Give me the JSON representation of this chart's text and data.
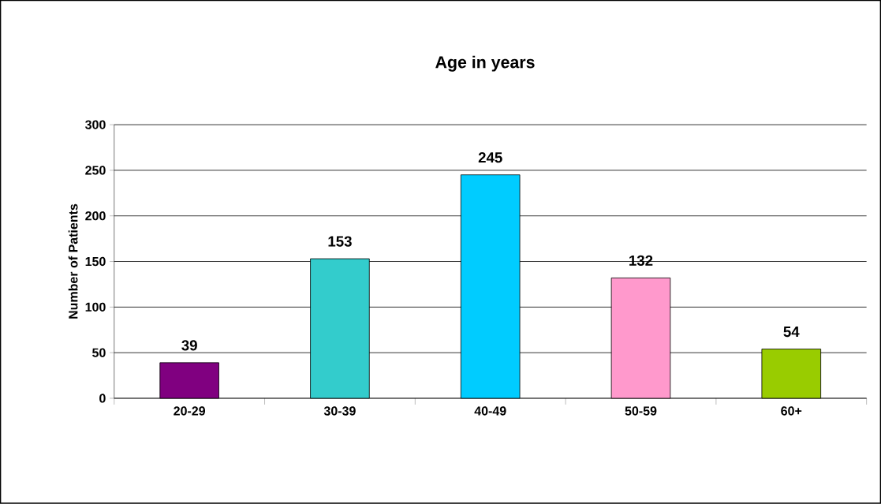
{
  "chart_data": {
    "type": "bar",
    "title": "Age in years",
    "ylabel": "Number of Patients",
    "categories": [
      "20-29",
      "30-39",
      "40-49",
      "50-59",
      "60+"
    ],
    "values": [
      39,
      153,
      245,
      132,
      54
    ],
    "colors": [
      "#800080",
      "#33cccc",
      "#00ccff",
      "#ff99cc",
      "#99cc00"
    ],
    "ylim": [
      0,
      300
    ],
    "yticks": [
      0,
      50,
      100,
      150,
      200,
      250,
      300
    ],
    "grid": "y",
    "data_labels": true
  }
}
